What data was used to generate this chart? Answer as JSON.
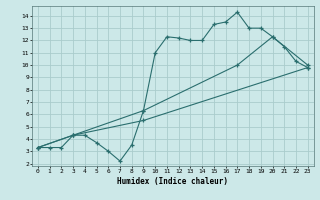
{
  "bg_color": "#cce8e8",
  "grid_color": "#aacccc",
  "line_color": "#2a6e6e",
  "line1_x": [
    0,
    1,
    2,
    3,
    4,
    5,
    6,
    7,
    8,
    9,
    10,
    11,
    12,
    13,
    14,
    15,
    16,
    17,
    18,
    19,
    20,
    21,
    22,
    23
  ],
  "line1_y": [
    3.3,
    3.3,
    3.3,
    4.3,
    4.3,
    3.7,
    3.0,
    2.2,
    3.5,
    6.3,
    11.0,
    12.3,
    12.2,
    12.0,
    12.0,
    13.3,
    13.5,
    14.3,
    13.0,
    13.0,
    12.3,
    11.5,
    10.3,
    9.8
  ],
  "line2_x": [
    0,
    3,
    9,
    17,
    20,
    23
  ],
  "line2_y": [
    3.3,
    4.3,
    6.3,
    10.0,
    12.3,
    10.0
  ],
  "line3_x": [
    0,
    3,
    9,
    23
  ],
  "line3_y": [
    3.3,
    4.3,
    5.5,
    9.8
  ],
  "xlabel": "Humidex (Indice chaleur)",
  "xlim": [
    -0.5,
    23.5
  ],
  "ylim": [
    1.8,
    14.8
  ],
  "xticks": [
    0,
    1,
    2,
    3,
    4,
    5,
    6,
    7,
    8,
    9,
    10,
    11,
    12,
    13,
    14,
    15,
    16,
    17,
    18,
    19,
    20,
    21,
    22,
    23
  ],
  "yticks": [
    2,
    3,
    4,
    5,
    6,
    7,
    8,
    9,
    10,
    11,
    12,
    13,
    14
  ]
}
